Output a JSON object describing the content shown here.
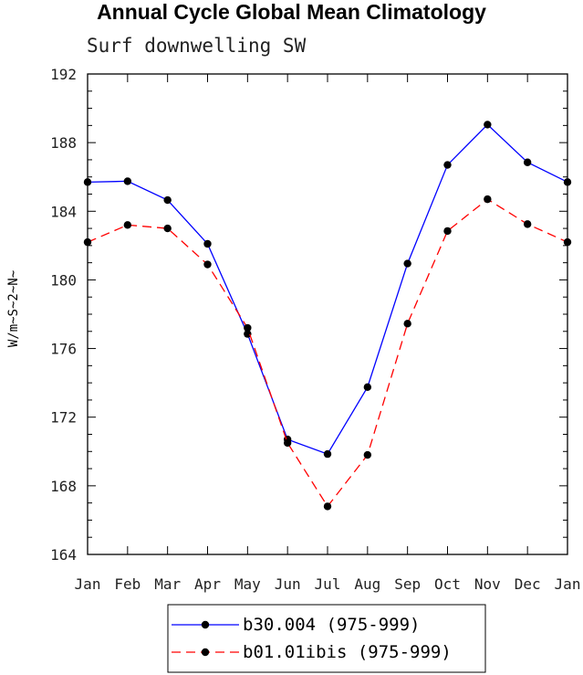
{
  "chart_data": {
    "type": "line",
    "title": "Annual Cycle Global Mean Climatology",
    "subtitle": "Surf downwelling SW",
    "ylabel": "W/m~S~2~N~",
    "xlabel": "",
    "categories": [
      "Jan",
      "Feb",
      "Mar",
      "Apr",
      "May",
      "Jun",
      "Jul",
      "Aug",
      "Sep",
      "Oct",
      "Nov",
      "Dec",
      "Jan"
    ],
    "ylim": [
      164,
      192
    ],
    "yticks": [
      164,
      168,
      172,
      176,
      180,
      184,
      188,
      192
    ],
    "grid": false,
    "legend_placement": "bottom",
    "series": [
      {
        "name": "b30.004 (975-999)",
        "color": "#0000ff",
        "dash": "solid",
        "values": [
          185.7,
          185.75,
          184.65,
          182.1,
          176.85,
          170.7,
          169.85,
          173.75,
          180.95,
          186.7,
          189.05,
          186.85,
          185.7
        ]
      },
      {
        "name": "b01.01ibis (975-999)",
        "color": "#ff0000",
        "dash": "dashed",
        "values": [
          182.2,
          183.2,
          183.0,
          180.9,
          177.2,
          170.5,
          166.8,
          169.8,
          177.45,
          182.85,
          184.7,
          183.25,
          182.2
        ]
      }
    ]
  }
}
